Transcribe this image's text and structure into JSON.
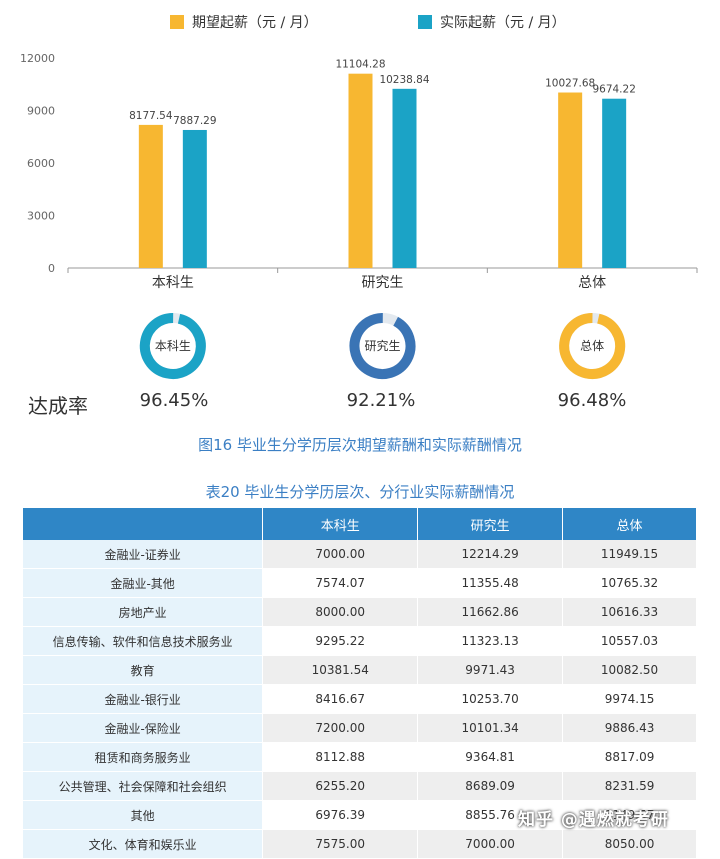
{
  "chart_data": {
    "type": "bar",
    "categories": [
      "本科生",
      "研究生",
      "总体"
    ],
    "series": [
      {
        "name": "期望起薪（元 / 月）",
        "values": [
          8177.54,
          11104.28,
          10027.68
        ],
        "color": "#f7b731"
      },
      {
        "name": "实际起薪（元 / 月）",
        "values": [
          7887.29,
          10238.84,
          9674.22
        ],
        "color": "#1ba3c6"
      }
    ],
    "yticks": [
      0,
      3000,
      6000,
      9000,
      12000
    ],
    "ylim": [
      0,
      12000
    ],
    "data_labels": [
      [
        "8177.54",
        "11104.28",
        "10027.68"
      ],
      [
        "7887.29",
        "10238.84",
        "9674.22"
      ]
    ]
  },
  "legend": {
    "expected": "期望起薪（元 / 月）",
    "actual": "实际起薪（元 / 月）"
  },
  "achievement": {
    "label": "达成率",
    "items": [
      {
        "name": "本科生",
        "value_text": "96.45%",
        "value": 96.45,
        "color": "#1ba3c6"
      },
      {
        "name": "研究生",
        "value_text": "92.21%",
        "value": 92.21,
        "color": "#3a74b5"
      },
      {
        "name": "总体",
        "value_text": "96.48%",
        "value": 96.48,
        "color": "#f7b731"
      }
    ]
  },
  "figure_caption": "图16  毕业生分学历层次期望薪酬和实际薪酬情况",
  "table": {
    "caption": "表20  毕业生分学历层次、分行业实际薪酬情况",
    "headers": [
      "",
      "本科生",
      "研究生",
      "总体"
    ],
    "rows": [
      [
        "金融业-证券业",
        "7000.00",
        "12214.29",
        "11949.15"
      ],
      [
        "金融业-其他",
        "7574.07",
        "11355.48",
        "10765.32"
      ],
      [
        "房地产业",
        "8000.00",
        "11662.86",
        "10616.33"
      ],
      [
        "信息传输、软件和信息技术服务业",
        "9295.22",
        "11323.13",
        "10557.03"
      ],
      [
        "教育",
        "10381.54",
        "9971.43",
        "10082.50"
      ],
      [
        "金融业-银行业",
        "8416.67",
        "10253.70",
        "9974.15"
      ],
      [
        "金融业-保险业",
        "7200.00",
        "10101.34",
        "9886.43"
      ],
      [
        "租赁和商务服务业",
        "8112.88",
        "9364.81",
        "8817.09"
      ],
      [
        "公共管理、社会保障和社会组织",
        "6255.20",
        "8689.09",
        "8231.59"
      ],
      [
        "其他",
        "6976.39",
        "8855.76",
        "8149.57"
      ],
      [
        "文化、体育和娱乐业",
        "7575.00",
        "7000.00",
        "8050.00"
      ]
    ]
  },
  "watermark": "知乎 @遇燃就考研"
}
